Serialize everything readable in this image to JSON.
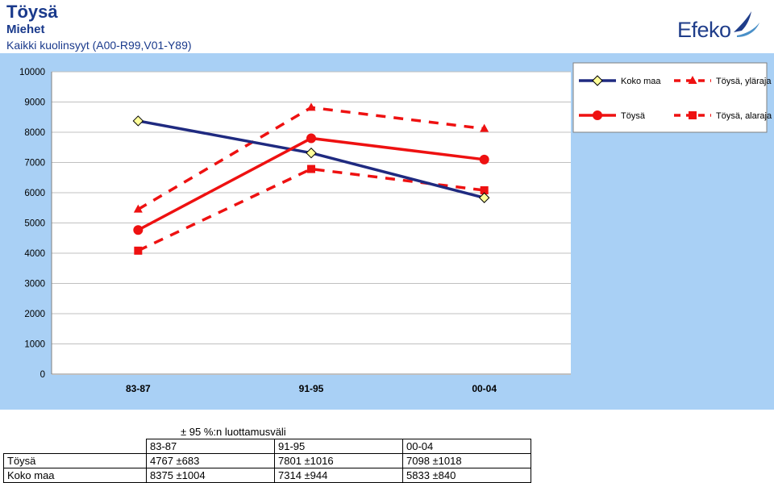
{
  "header": {
    "title": "Töysä",
    "subtitle": "Miehet",
    "caption": "Kaikki kuolinsyyt (A00-R99,V01-Y89)"
  },
  "logo": {
    "text": "Efeko",
    "icon": "bird-swoosh-icon"
  },
  "chart_data": {
    "type": "line",
    "categories": [
      "83-87",
      "91-95",
      "00-04"
    ],
    "ylim": [
      0,
      10000
    ],
    "yticks": [
      0,
      1000,
      2000,
      3000,
      4000,
      5000,
      6000,
      7000,
      8000,
      9000,
      10000
    ],
    "grid": true,
    "legend_position": "top-right",
    "plot_background": "#ffffff",
    "frame_color": "#99ccff",
    "series": [
      {
        "name": "Koko maa",
        "values": [
          8375,
          7314,
          5833
        ],
        "color": "#1f2a80",
        "marker": "diamond",
        "marker_fill": "#ffff99",
        "dash": false
      },
      {
        "name": "Töysä",
        "values": [
          4767,
          7801,
          7098
        ],
        "color": "#ee1111",
        "marker": "circle",
        "marker_fill": "#ee1111",
        "dash": false
      },
      {
        "name": "Töysä, yläraja",
        "values": [
          5450,
          8817,
          8116
        ],
        "color": "#ee1111",
        "marker": "triangle",
        "marker_fill": "#ee1111",
        "dash": true
      },
      {
        "name": "Töysä, alaraja",
        "values": [
          4084,
          6785,
          6080
        ],
        "color": "#ee1111",
        "marker": "square",
        "marker_fill": "#ee1111",
        "dash": true
      }
    ]
  },
  "ci_table": {
    "caption": "± 95 %:n luottamusväli",
    "columns": [
      "83-87",
      "91-95",
      "00-04"
    ],
    "rows": [
      {
        "label": "Töysä",
        "cells": [
          "4767 ±683",
          "7801 ±1016",
          "7098 ±1018"
        ]
      },
      {
        "label": "Koko maa",
        "cells": [
          "8375 ±1004",
          "7314 ±944",
          "5833 ±840"
        ]
      }
    ]
  }
}
